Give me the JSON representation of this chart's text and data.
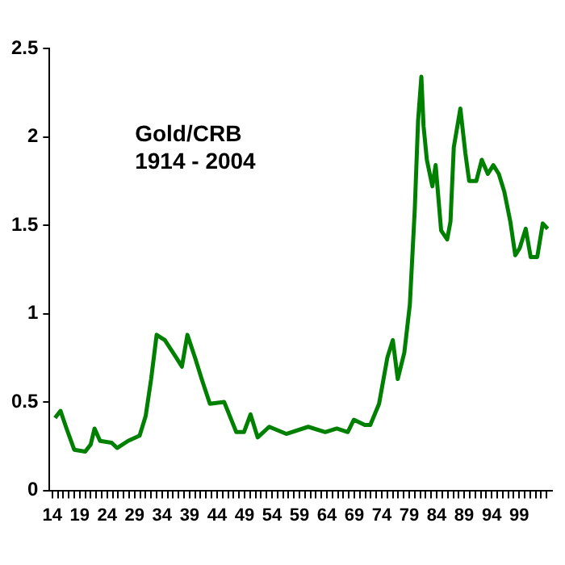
{
  "chart_data": {
    "type": "line",
    "title": "Gold/CRB",
    "subtitle": "1914 - 2004",
    "xlim": [
      1913.5,
      2005
    ],
    "xticks": [
      {
        "value": 1914,
        "label": "14"
      },
      {
        "value": 1915,
        "label": null
      },
      {
        "value": 1916,
        "label": null
      },
      {
        "value": 1917,
        "label": null
      },
      {
        "value": 1918,
        "label": null
      },
      {
        "value": 1919,
        "label": "19"
      },
      {
        "value": 1920,
        "label": null
      },
      {
        "value": 1921,
        "label": null
      },
      {
        "value": 1922,
        "label": null
      },
      {
        "value": 1923,
        "label": null
      },
      {
        "value": 1924,
        "label": "24"
      },
      {
        "value": 1925,
        "label": null
      },
      {
        "value": 1926,
        "label": null
      },
      {
        "value": 1927,
        "label": null
      },
      {
        "value": 1928,
        "label": null
      },
      {
        "value": 1929,
        "label": "29"
      },
      {
        "value": 1930,
        "label": null
      },
      {
        "value": 1931,
        "label": null
      },
      {
        "value": 1932,
        "label": null
      },
      {
        "value": 1933,
        "label": null
      },
      {
        "value": 1934,
        "label": "34"
      },
      {
        "value": 1935,
        "label": null
      },
      {
        "value": 1936,
        "label": null
      },
      {
        "value": 1937,
        "label": null
      },
      {
        "value": 1938,
        "label": null
      },
      {
        "value": 1939,
        "label": "39"
      },
      {
        "value": 1940,
        "label": null
      },
      {
        "value": 1941,
        "label": null
      },
      {
        "value": 1942,
        "label": null
      },
      {
        "value": 1943,
        "label": null
      },
      {
        "value": 1944,
        "label": "44"
      },
      {
        "value": 1945,
        "label": null
      },
      {
        "value": 1946,
        "label": null
      },
      {
        "value": 1947,
        "label": null
      },
      {
        "value": 1948,
        "label": null
      },
      {
        "value": 1949,
        "label": "49"
      },
      {
        "value": 1950,
        "label": null
      },
      {
        "value": 1951,
        "label": null
      },
      {
        "value": 1952,
        "label": null
      },
      {
        "value": 1953,
        "label": null
      },
      {
        "value": 1954,
        "label": "54"
      },
      {
        "value": 1955,
        "label": null
      },
      {
        "value": 1956,
        "label": null
      },
      {
        "value": 1957,
        "label": null
      },
      {
        "value": 1958,
        "label": null
      },
      {
        "value": 1959,
        "label": "59"
      },
      {
        "value": 1960,
        "label": null
      },
      {
        "value": 1961,
        "label": null
      },
      {
        "value": 1962,
        "label": null
      },
      {
        "value": 1963,
        "label": null
      },
      {
        "value": 1964,
        "label": "64"
      },
      {
        "value": 1965,
        "label": null
      },
      {
        "value": 1966,
        "label": null
      },
      {
        "value": 1967,
        "label": null
      },
      {
        "value": 1968,
        "label": null
      },
      {
        "value": 1969,
        "label": "69"
      },
      {
        "value": 1970,
        "label": null
      },
      {
        "value": 1971,
        "label": null
      },
      {
        "value": 1972,
        "label": null
      },
      {
        "value": 1973,
        "label": null
      },
      {
        "value": 1974,
        "label": "74"
      },
      {
        "value": 1975,
        "label": null
      },
      {
        "value": 1976,
        "label": null
      },
      {
        "value": 1977,
        "label": null
      },
      {
        "value": 1978,
        "label": null
      },
      {
        "value": 1979,
        "label": "79"
      },
      {
        "value": 1980,
        "label": null
      },
      {
        "value": 1981,
        "label": null
      },
      {
        "value": 1982,
        "label": null
      },
      {
        "value": 1983,
        "label": null
      },
      {
        "value": 1984,
        "label": "84"
      },
      {
        "value": 1985,
        "label": null
      },
      {
        "value": 1986,
        "label": null
      },
      {
        "value": 1987,
        "label": null
      },
      {
        "value": 1988,
        "label": null
      },
      {
        "value": 1989,
        "label": "89"
      },
      {
        "value": 1990,
        "label": null
      },
      {
        "value": 1991,
        "label": null
      },
      {
        "value": 1992,
        "label": null
      },
      {
        "value": 1993,
        "label": null
      },
      {
        "value": 1994,
        "label": "94"
      },
      {
        "value": 1995,
        "label": null
      },
      {
        "value": 1996,
        "label": null
      },
      {
        "value": 1997,
        "label": null
      },
      {
        "value": 1998,
        "label": null
      },
      {
        "value": 1999,
        "label": "99"
      },
      {
        "value": 2000,
        "label": null
      },
      {
        "value": 2001,
        "label": null
      },
      {
        "value": 2002,
        "label": null
      },
      {
        "value": 2003,
        "label": null
      },
      {
        "value": 2004,
        "label": null
      }
    ],
    "ylim": [
      0,
      2.5
    ],
    "yticks": [
      0,
      0.5,
      1,
      1.5,
      2,
      2.5
    ],
    "grid": false,
    "legend": false,
    "series": [
      {
        "color": "#008000",
        "x": [
          1914.5,
          1915.5,
          1916.6,
          1918,
          1920,
          1921,
          1921.7,
          1922.7,
          1924.8,
          1925.8,
          1927.8,
          1929.9,
          1931,
          1932,
          1933,
          1934.5,
          1936.6,
          1937.6,
          1938.6,
          1940,
          1941.2,
          1942.7,
          1945.3,
          1947.5,
          1948.9,
          1950.1,
          1951.4,
          1953.5,
          1956.6,
          1960.6,
          1963.7,
          1965.8,
          1967.8,
          1968.9,
          1970.9,
          1971.9,
          1973.5,
          1975,
          1976,
          1976.9,
          1978.1,
          1979.1,
          1980,
          1980.6,
          1981.2,
          1981.6,
          1982.2,
          1983.2,
          1983.8,
          1984.8,
          1985.9,
          1986.5,
          1987.1,
          1988.3,
          1989.2,
          1989.9,
          1991.2,
          1992.2,
          1993.3,
          1994.3,
          1995.3,
          1996.3,
          1997.4,
          1998.3,
          1999.1,
          2000.2,
          2001.1,
          2002.3,
          2003.3,
          2004.2
        ],
        "values": [
          0.41,
          0.45,
          0.35,
          0.23,
          0.22,
          0.26,
          0.35,
          0.28,
          0.27,
          0.24,
          0.28,
          0.31,
          0.42,
          0.63,
          0.88,
          0.85,
          0.75,
          0.7,
          0.88,
          0.75,
          0.63,
          0.49,
          0.5,
          0.33,
          0.33,
          0.43,
          0.3,
          0.36,
          0.32,
          0.36,
          0.33,
          0.35,
          0.33,
          0.4,
          0.37,
          0.37,
          0.49,
          0.75,
          0.85,
          0.63,
          0.78,
          1.05,
          1.59,
          2.09,
          2.34,
          2.06,
          1.87,
          1.72,
          1.84,
          1.47,
          1.42,
          1.52,
          1.94,
          2.16,
          1.91,
          1.75,
          1.75,
          1.87,
          1.79,
          1.84,
          1.79,
          1.69,
          1.52,
          1.33,
          1.37,
          1.48,
          1.32,
          1.32,
          1.51,
          1.48
        ]
      }
    ]
  }
}
